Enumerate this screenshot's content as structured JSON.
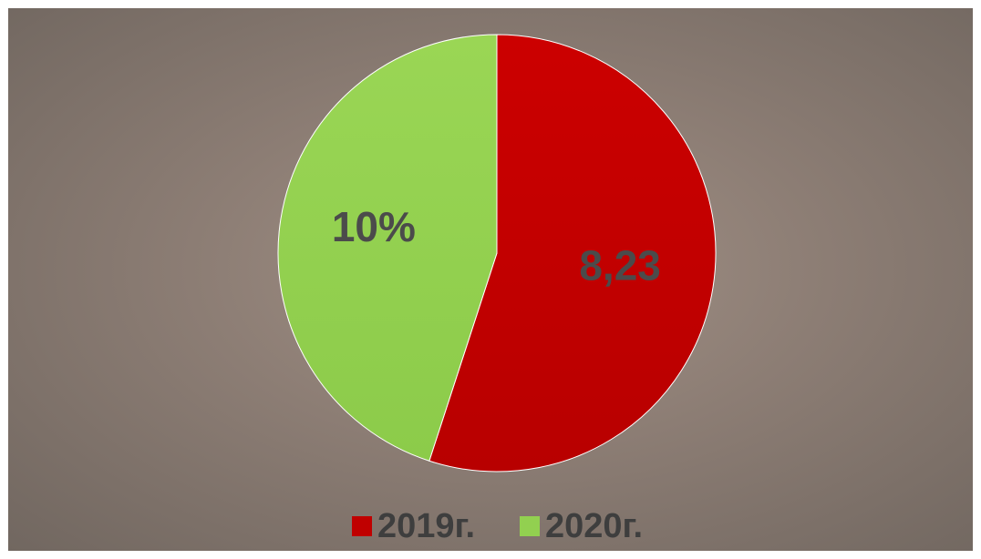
{
  "chart_data": {
    "type": "pie",
    "categories": [
      "2019г.",
      "2020г."
    ],
    "values": [
      55,
      45
    ],
    "data_labels": [
      "8,23",
      "10%"
    ],
    "colors": [
      "#c00000",
      "#92d050"
    ],
    "start_angle_deg": 0,
    "legend": {
      "position": "bottom"
    },
    "title": ""
  }
}
